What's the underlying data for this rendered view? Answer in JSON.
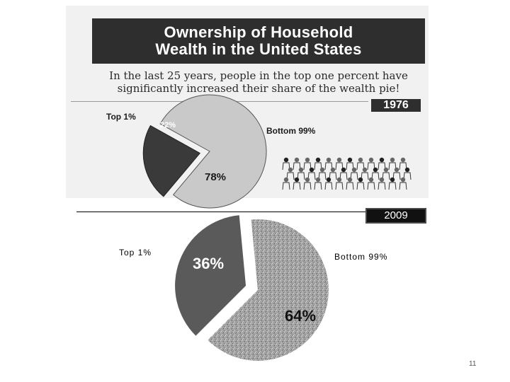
{
  "slide": {
    "title_line1": "Ownership of Household",
    "title_line2": "Wealth in the United States",
    "subtitle_line1": "In the last 25 years, people in the top one percent have",
    "subtitle_line2": "significantly increased their share of the wealth pie!",
    "page_number": "11"
  },
  "colors": {
    "banner": "#2e2e2e",
    "top_1976": "#3a3a3a",
    "bottom_1976": "#c9c9c9",
    "top_2009": "#5a5a5a",
    "bottom_2009": "#9e9e9e"
  },
  "chart_data": [
    {
      "type": "pie",
      "title": "1976",
      "slices": [
        {
          "label": "Top 1%",
          "value": 22,
          "value_label": "22%"
        },
        {
          "label": "Bottom 99%",
          "value": 78,
          "value_label": "78%"
        }
      ]
    },
    {
      "type": "pie",
      "title": "2009",
      "slices": [
        {
          "label": "Top 1%",
          "value": 36,
          "value_label": "36%"
        },
        {
          "label": "Bottom 99%",
          "value": 64,
          "value_label": "64%"
        }
      ]
    }
  ]
}
